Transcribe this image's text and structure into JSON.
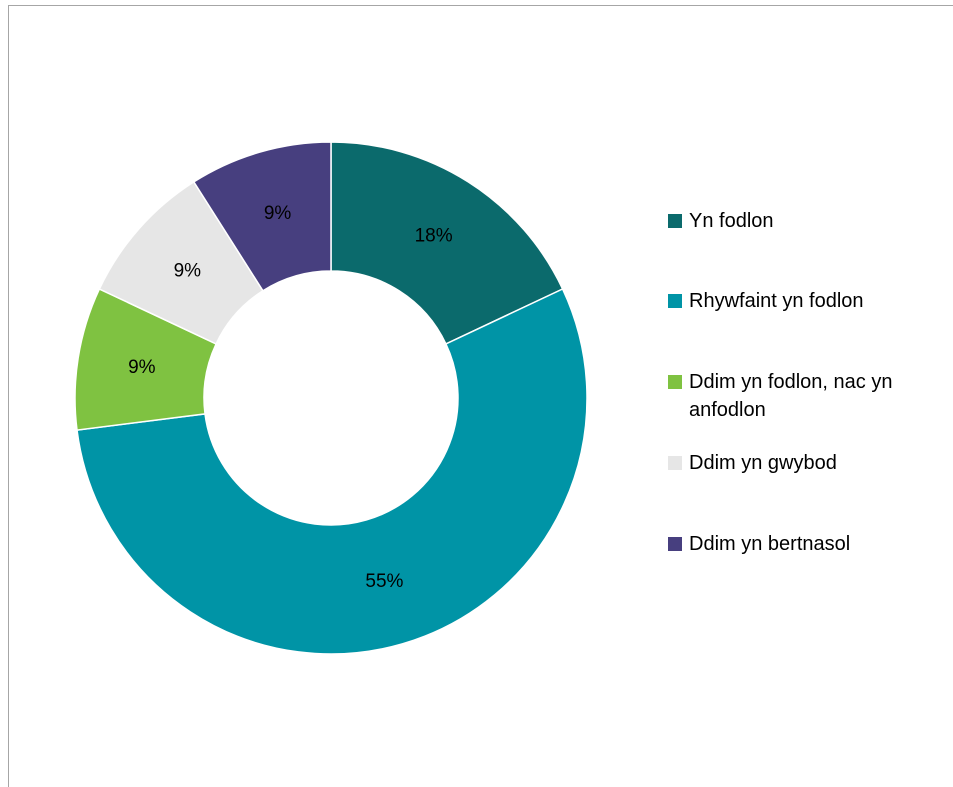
{
  "chart_data": {
    "type": "donut",
    "categories": [
      "Yn fodlon",
      "Rhywfaint yn fodlon",
      "Ddim yn fodlon, nac yn anfodlon",
      "Ddim yn gwybod",
      "Ddim yn bertnasol"
    ],
    "values": [
      18,
      55,
      9,
      9,
      9
    ],
    "value_labels": [
      "18%",
      "55%",
      "9%",
      "9%",
      "9%"
    ],
    "colors": [
      "#0b6a6c",
      "#0094a6",
      "#7fc241",
      "#e6e6e6",
      "#473f7f"
    ],
    "legend": "right"
  }
}
